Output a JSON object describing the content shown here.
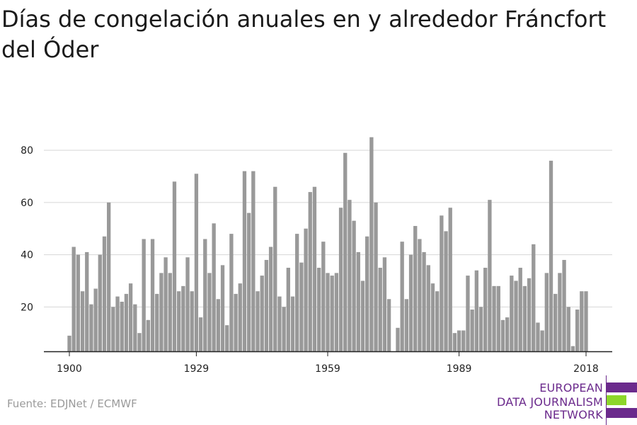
{
  "title": "Días de congelación anuales en y alrededor Fráncfort del Óder",
  "source": "Fuente: EDJNet / ECMWF",
  "logo": {
    "lines": [
      "EUROPEAN",
      "DATA JOURNALISM",
      "NETWORK"
    ],
    "colors": [
      "#6b2a8c",
      "#8dd62a",
      "#6b2a8c"
    ]
  },
  "chart_data": {
    "type": "bar",
    "x_start": 1900,
    "x_end": 2018,
    "x_ticks": [
      1900,
      1929,
      1959,
      1989,
      2018
    ],
    "y_ticks": [
      20,
      40,
      60,
      80
    ],
    "ylim": [
      3,
      86
    ],
    "bar_color": "#999999",
    "values": [
      9,
      43,
      40,
      26,
      41,
      21,
      27,
      40,
      47,
      60,
      20,
      24,
      22,
      25,
      29,
      21,
      10,
      46,
      15,
      46,
      25,
      33,
      39,
      33,
      68,
      26,
      28,
      39,
      26,
      71,
      16,
      46,
      33,
      52,
      23,
      36,
      13,
      48,
      25,
      29,
      72,
      56,
      72,
      26,
      32,
      38,
      43,
      66,
      24,
      20,
      35,
      24,
      48,
      37,
      50,
      64,
      66,
      35,
      45,
      33,
      32,
      33,
      58,
      79,
      61,
      53,
      41,
      30,
      47,
      85,
      60,
      35,
      39,
      23,
      3,
      12,
      45,
      23,
      40,
      51,
      46,
      41,
      36,
      29,
      26,
      55,
      49,
      58,
      10,
      11,
      11,
      32,
      19,
      34,
      20,
      35,
      61,
      28,
      28,
      15,
      16,
      32,
      30,
      35,
      28,
      31,
      44,
      14,
      11,
      33,
      76,
      25,
      33,
      38,
      20,
      5,
      19,
      26,
      26
    ]
  }
}
